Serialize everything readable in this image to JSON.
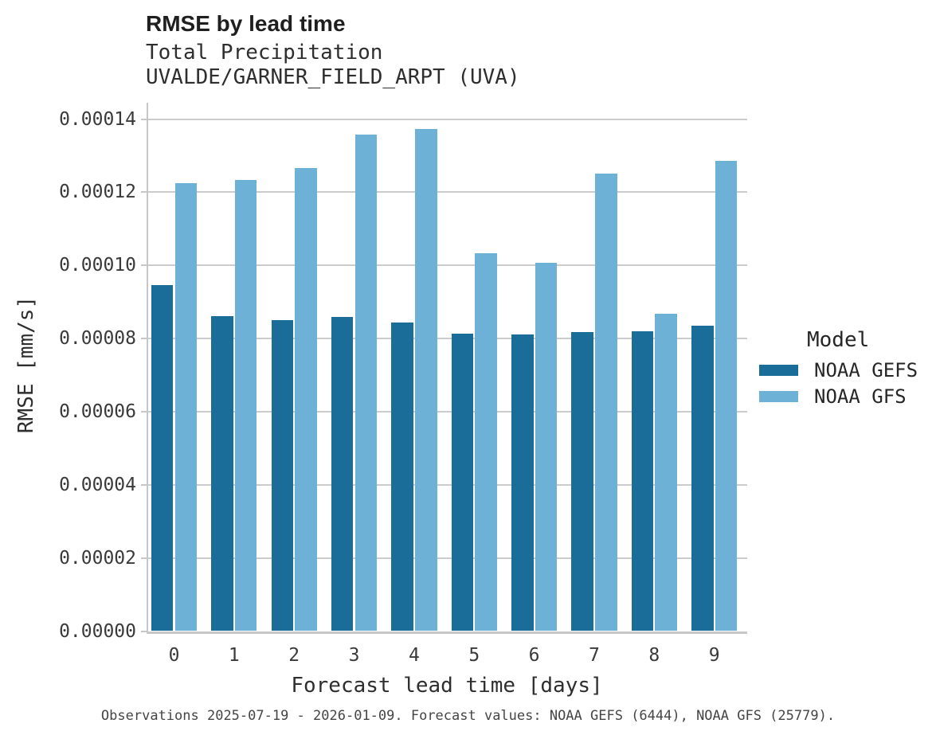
{
  "header": {
    "title": "RMSE by lead time",
    "subtitle_line1": "Total Precipitation",
    "subtitle_line2": "UVALDE/GARNER_FIELD_ARPT (UVA)"
  },
  "legend": {
    "title": "Model",
    "items": [
      {
        "label": "NOAA GEFS",
        "color": "#1b6d99"
      },
      {
        "label": "NOAA GFS",
        "color": "#6eb1d7"
      }
    ]
  },
  "caption": "Observations 2025-07-19 - 2026-01-09. Forecast values: NOAA GEFS (6444), NOAA GFS (25779).",
  "colors": {
    "series_dark": "#1b6d99",
    "series_light": "#6eb1d7",
    "gridline": "#cccccc",
    "axis": "#c7c7c7",
    "text_dark": "#1f1f1f",
    "text_medium": "#2e2e2e",
    "tick_text": "#3a3a3a"
  },
  "chart_data": {
    "type": "bar",
    "title": "RMSE by lead time",
    "subtitle": [
      "Total Precipitation",
      "UVALDE/GARNER_FIELD_ARPT (UVA)"
    ],
    "xlabel": "Forecast lead time [days]",
    "ylabel": "RMSE [mm/s]",
    "categories": [
      "0",
      "1",
      "2",
      "3",
      "4",
      "5",
      "6",
      "7",
      "8",
      "9"
    ],
    "series": [
      {
        "name": "NOAA GEFS",
        "color": "#1b6d99",
        "values": [
          9.46e-05,
          8.62e-05,
          8.51e-05,
          8.58e-05,
          8.43e-05,
          8.14e-05,
          8.1e-05,
          8.17e-05,
          8.19e-05,
          8.35e-05
        ]
      },
      {
        "name": "NOAA GFS",
        "color": "#6eb1d7",
        "values": [
          0.0001224,
          0.0001233,
          0.0001266,
          0.0001358,
          0.0001372,
          0.0001034,
          0.0001007,
          0.000125,
          8.68e-05,
          0.0001285
        ]
      }
    ],
    "ylim": [
      0,
      0.00014
    ],
    "ytick_step": 2e-05,
    "ytick_labels": [
      "0.00000",
      "0.00002",
      "0.00004",
      "0.00006",
      "0.00008",
      "0.00010",
      "0.00012",
      "0.00014"
    ],
    "grid": true,
    "legend_position": "right",
    "legend_title": "Model"
  }
}
